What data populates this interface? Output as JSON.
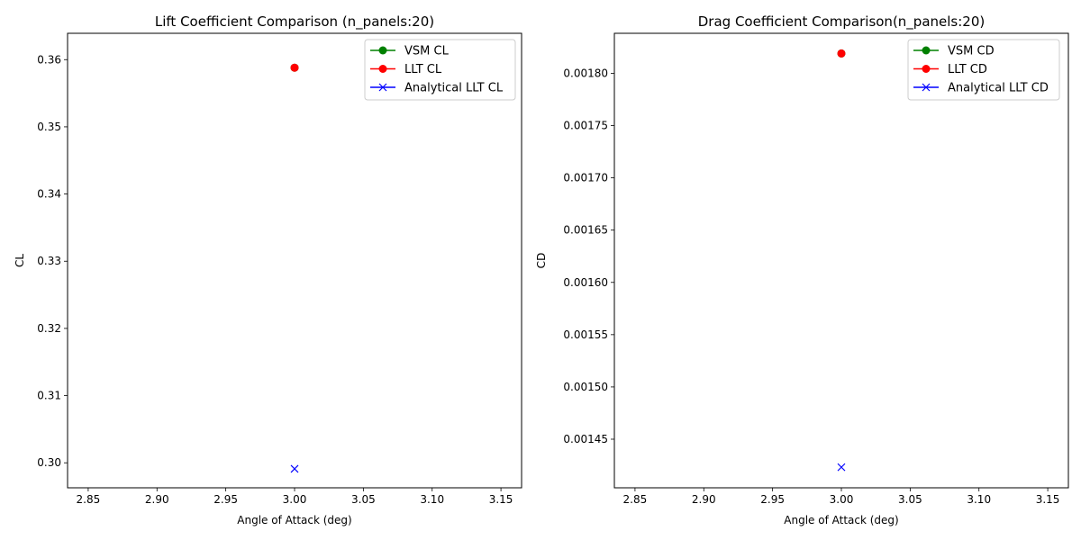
{
  "chart_data": [
    {
      "type": "scatter",
      "title": "Lift Coefficient Comparison (n_panels:20)",
      "xlabel": "Angle of Attack (deg)",
      "ylabel": "CL",
      "xlim": [
        2.835,
        3.165
      ],
      "ylim": [
        0.29628,
        0.36392
      ],
      "xticks": [
        "2.85",
        "2.90",
        "2.95",
        "3.00",
        "3.05",
        "3.10",
        "3.15"
      ],
      "xtick_values": [
        2.85,
        2.9,
        2.95,
        3.0,
        3.05,
        3.1,
        3.15
      ],
      "yticks": [
        "0.30",
        "0.31",
        "0.32",
        "0.33",
        "0.34",
        "0.35",
        "0.36"
      ],
      "ytick_values": [
        0.3,
        0.31,
        0.32,
        0.33,
        0.34,
        0.35,
        0.36
      ],
      "grid": false,
      "legend_position": "top-right",
      "series": [
        {
          "name": "VSM CL",
          "x": [
            3.0
          ],
          "y": [
            0.3588
          ],
          "color": "#008000",
          "marker": "circle"
        },
        {
          "name": "LLT CL",
          "x": [
            3.0
          ],
          "y": [
            0.3588
          ],
          "color": "#ff0000",
          "marker": "circle"
        },
        {
          "name": "Analytical LLT CL",
          "x": [
            3.0
          ],
          "y": [
            0.2991
          ],
          "color": "#0000ff",
          "marker": "x"
        }
      ]
    },
    {
      "type": "scatter",
      "title": "Drag Coefficient Comparison(n_panels:20)",
      "xlabel": "Angle of Attack (deg)",
      "ylabel": "CD",
      "xlim": [
        2.835,
        3.165
      ],
      "ylim": [
        0.0014035,
        0.0018383
      ],
      "xticks": [
        "2.85",
        "2.90",
        "2.95",
        "3.00",
        "3.05",
        "3.10",
        "3.15"
      ],
      "xtick_values": [
        2.85,
        2.9,
        2.95,
        3.0,
        3.05,
        3.1,
        3.15
      ],
      "yticks": [
        "0.00145",
        "0.00150",
        "0.00155",
        "0.00160",
        "0.00165",
        "0.00170",
        "0.00175",
        "0.00180"
      ],
      "ytick_values": [
        0.00145,
        0.0015,
        0.00155,
        0.0016,
        0.00165,
        0.0017,
        0.00175,
        0.0018
      ],
      "grid": false,
      "legend_position": "top-right",
      "series": [
        {
          "name": "VSM CD",
          "x": [
            3.0
          ],
          "y": [
            0.001819
          ],
          "color": "#008000",
          "marker": "circle"
        },
        {
          "name": "LLT CD",
          "x": [
            3.0
          ],
          "y": [
            0.001819
          ],
          "color": "#ff0000",
          "marker": "circle"
        },
        {
          "name": "Analytical LLT CD",
          "x": [
            3.0
          ],
          "y": [
            0.0014232
          ],
          "color": "#0000ff",
          "marker": "x"
        }
      ]
    }
  ]
}
